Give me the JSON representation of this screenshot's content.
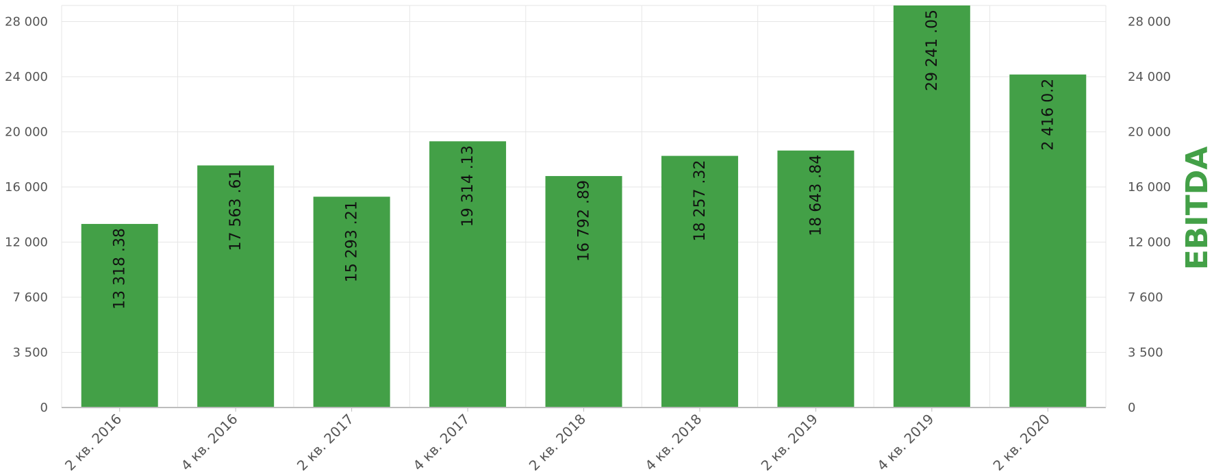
{
  "chart_data": {
    "type": "bar",
    "categories": [
      "2 кв. 2016",
      "4 кв. 2016",
      "2 кв. 2017",
      "4 кв. 2017",
      "2 кв. 2018",
      "4 кв. 2018",
      "2 кв. 2019",
      "4 кв. 2019",
      "2 кв. 2020"
    ],
    "values": [
      13318.38,
      17563.61,
      15293.21,
      19314.13,
      16792.89,
      18257.32,
      18643.84,
      29241.05,
      24160.2
    ],
    "data_labels": [
      "13 318 .38",
      "17 563 .61",
      "15 293 .21",
      "19 314 .13",
      "16 792 .89",
      "18 257 .32",
      "18 643 .84",
      "29 241 .05",
      "2 416 0.2"
    ],
    "y_ticks": [
      0,
      3500,
      7600,
      12000,
      16000,
      20000,
      24000,
      28000
    ],
    "y_tick_labels": [
      "0",
      "3 500",
      "7 600",
      "12 000",
      "16 000",
      "20 000",
      "24 000",
      "28 000"
    ],
    "ylim": [
      0,
      29200
    ],
    "right_axis_title": "EBITDA",
    "grid": true,
    "colors": {
      "bar": "#43a047",
      "title": "#43a047",
      "grid": "#e6e6e6",
      "axis": "#bdbdbd"
    }
  }
}
